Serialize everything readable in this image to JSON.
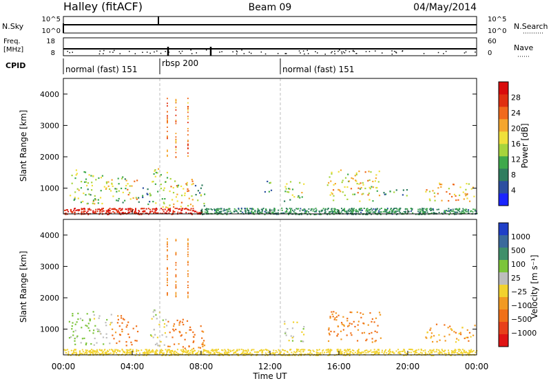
{
  "header": {
    "station": "Halley (fitACF)",
    "beam": "Beam 09",
    "date": "04/May/2014"
  },
  "time_axis": {
    "label": "Time UT",
    "ticks": [
      "00:00",
      "04:00",
      "08:00",
      "12:00",
      "16:00",
      "20:00",
      "00:00"
    ],
    "hours": [
      0,
      4,
      8,
      12,
      16,
      20,
      24
    ]
  },
  "nsky_panel": {
    "left_label": "N.Sky",
    "right_label": "N.Search",
    "left_ticks": [
      "10^5",
      "10^0"
    ],
    "right_ticks": [
      "10^5",
      "10^0"
    ]
  },
  "freq_panel": {
    "left_label_line1": "Freq.",
    "left_label_line2": "[MHz]",
    "right_label": "Nave",
    "left_ticks": [
      "18",
      "8"
    ],
    "right_ticks": [
      "60",
      "0"
    ]
  },
  "cpid_panel": {
    "label": "CPID",
    "segments": [
      {
        "name": "normal (fast) 151",
        "start_hour": 0.0
      },
      {
        "name": "rbsp 200",
        "start_hour": 5.6
      },
      {
        "name": "normal (fast) 151",
        "start_hour": 12.6
      }
    ]
  },
  "power_panel": {
    "ylabel": "Slant Range [km]",
    "yticks": [
      "1000",
      "2000",
      "3000",
      "4000"
    ],
    "ytick_values": [
      1000,
      2000,
      3000,
      4000
    ],
    "colorbar_label": "Power [dB]",
    "colorbar_ticks": [
      "4",
      "8",
      "12",
      "16",
      "20",
      "24",
      "28"
    ],
    "colors": [
      "#1a24ff",
      "#2c4fa0",
      "#2f7d5f",
      "#3ea94b",
      "#a6d43c",
      "#f0e03a",
      "#f5a62e",
      "#f06a1c",
      "#e03010",
      "#d90b0b"
    ]
  },
  "velocity_panel": {
    "ylabel": "Slant Range [km]",
    "yticks": [
      "1000",
      "2000",
      "3000",
      "4000"
    ],
    "ytick_values": [
      1000,
      2000,
      3000,
      4000
    ],
    "colorbar_label": "Velocity [m s⁻¹]",
    "colorbar_ticks": [
      "1000",
      "500",
      "100",
      "25",
      "−25",
      "−100",
      "−500",
      "−1000"
    ],
    "colors": [
      "#1f3fc8",
      "#3a6a9c",
      "#3f8f6a",
      "#7cc43a",
      "#bdbdbd",
      "#f2d22e",
      "#f29a22",
      "#f07018",
      "#e8401a",
      "#e01414"
    ]
  },
  "chart_data": {
    "type": "heatmap",
    "x_range_hours": [
      0,
      24
    ],
    "y_range_km": [
      180,
      4500
    ],
    "dashed_markers_hours": [
      5.6,
      12.6
    ],
    "power_blobs": [
      {
        "t0": 0.3,
        "t1": 1.7,
        "r0": 500,
        "r1": 1650,
        "db": 14
      },
      {
        "t0": 1.7,
        "t1": 2.8,
        "r0": 500,
        "r1": 1500,
        "db": 16
      },
      {
        "t0": 2.8,
        "t1": 3.6,
        "r0": 550,
        "r1": 1500,
        "db": 12
      },
      {
        "t0": 3.6,
        "t1": 4.3,
        "r0": 500,
        "r1": 1300,
        "db": 20
      },
      {
        "t0": 4.3,
        "t1": 5.0,
        "r0": 500,
        "r1": 1100,
        "db": 10
      },
      {
        "t0": 5.0,
        "t1": 6.0,
        "r0": 400,
        "r1": 1650,
        "db": 14
      },
      {
        "t0": 6.0,
        "t1": 7.6,
        "r0": 400,
        "r1": 1400,
        "db": 18
      },
      {
        "t0": 7.6,
        "t1": 8.2,
        "r0": 400,
        "r1": 1200,
        "db": 12
      },
      {
        "t0": 11.6,
        "t1": 12.2,
        "r0": 900,
        "r1": 1300,
        "db": 10
      },
      {
        "t0": 12.8,
        "t1": 14.0,
        "r0": 600,
        "r1": 1300,
        "db": 14
      },
      {
        "t0": 15.3,
        "t1": 18.4,
        "r0": 600,
        "r1": 1600,
        "db": 18
      },
      {
        "t0": 18.5,
        "t1": 20.0,
        "r0": 700,
        "r1": 1000,
        "db": 8
      },
      {
        "t0": 21.0,
        "t1": 23.9,
        "r0": 600,
        "r1": 1200,
        "db": 20
      }
    ],
    "velocity_blobs": [
      {
        "t0": 0.3,
        "t1": 1.7,
        "r0": 500,
        "r1": 1650,
        "vel": 150
      },
      {
        "t0": 1.7,
        "t1": 2.8,
        "r0": 500,
        "r1": 1500,
        "vel": 80
      },
      {
        "t0": 2.8,
        "t1": 3.6,
        "r0": 550,
        "r1": 1500,
        "vel": -120
      },
      {
        "t0": 3.6,
        "t1": 4.3,
        "r0": 500,
        "r1": 1300,
        "vel": -200
      },
      {
        "t0": 5.0,
        "t1": 6.0,
        "r0": 400,
        "r1": 1650,
        "vel": 60
      },
      {
        "t0": 6.0,
        "t1": 7.6,
        "r0": 400,
        "r1": 1400,
        "vel": -150
      },
      {
        "t0": 7.6,
        "t1": 8.2,
        "r0": 400,
        "r1": 1200,
        "vel": -100
      },
      {
        "t0": 12.8,
        "t1": 14.0,
        "r0": 600,
        "r1": 1300,
        "vel": 50
      },
      {
        "t0": 15.3,
        "t1": 18.4,
        "r0": 600,
        "r1": 1600,
        "vel": -120
      },
      {
        "t0": 21.0,
        "t1": 23.9,
        "r0": 600,
        "r1": 1200,
        "vel": -60
      }
    ]
  }
}
